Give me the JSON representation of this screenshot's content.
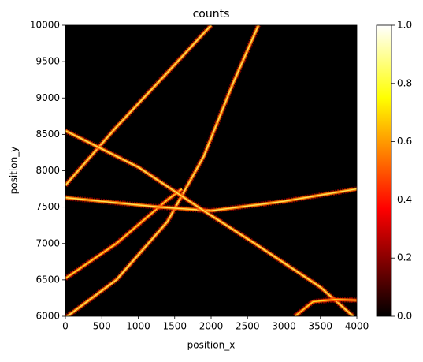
{
  "chart_data": {
    "type": "heatmap",
    "title": "counts",
    "x_label": "position_x",
    "y_label": "position_y",
    "xlim": [
      0,
      4000
    ],
    "ylim": [
      6000,
      10000
    ],
    "xticks": [
      0,
      500,
      1000,
      1500,
      2000,
      2500,
      3000,
      3500,
      4000
    ],
    "yticks": [
      6000,
      6500,
      7000,
      7500,
      8000,
      8500,
      9000,
      9500,
      10000
    ],
    "colorbar_lim": [
      0,
      1
    ],
    "colorbar_ticks": [
      {
        "value": 0,
        "label": "0.0"
      },
      {
        "value": 0.2,
        "label": "0.2"
      },
      {
        "value": 0.4,
        "label": "0.4"
      },
      {
        "value": 0.6,
        "label": "0.6"
      },
      {
        "value": 0.8,
        "label": "0.8"
      },
      {
        "value": 1,
        "label": "1.0"
      }
    ],
    "colormap": [
      {
        "value": 0,
        "color": "#000000"
      },
      {
        "value": 0.37,
        "color": "#ff0000"
      },
      {
        "value": 0.75,
        "color": "#ffff00"
      },
      {
        "value": 1,
        "color": "#ffffff"
      }
    ],
    "background": 0,
    "filaments": [
      {
        "intensity": 0.55,
        "x": [
          0,
          700,
          1400,
          2000
        ],
        "y": [
          7800,
          8600,
          9350,
          10000
        ]
      },
      {
        "intensity": 0.55,
        "x": [
          0,
          700,
          1400,
          1900,
          2300,
          2650
        ],
        "y": [
          5980,
          6500,
          7300,
          8200,
          9200,
          10000
        ]
      },
      {
        "intensity": 0.5,
        "x": [
          0,
          700,
          1400,
          1600
        ],
        "y": [
          6520,
          7000,
          7600,
          7750
        ]
      },
      {
        "intensity": 0.55,
        "x": [
          0,
          1300,
          2000,
          3000,
          4000
        ],
        "y": [
          7630,
          7500,
          7450,
          7580,
          7750
        ]
      },
      {
        "intensity": 0.55,
        "x": [
          0,
          1000,
          1900,
          2600,
          3500,
          3950
        ],
        "y": [
          8550,
          8050,
          7450,
          7000,
          6400,
          6000
        ]
      },
      {
        "intensity": 0.5,
        "x": [
          3150,
          3400,
          3700,
          4000
        ],
        "y": [
          6000,
          6200,
          6230,
          6220
        ]
      }
    ]
  }
}
